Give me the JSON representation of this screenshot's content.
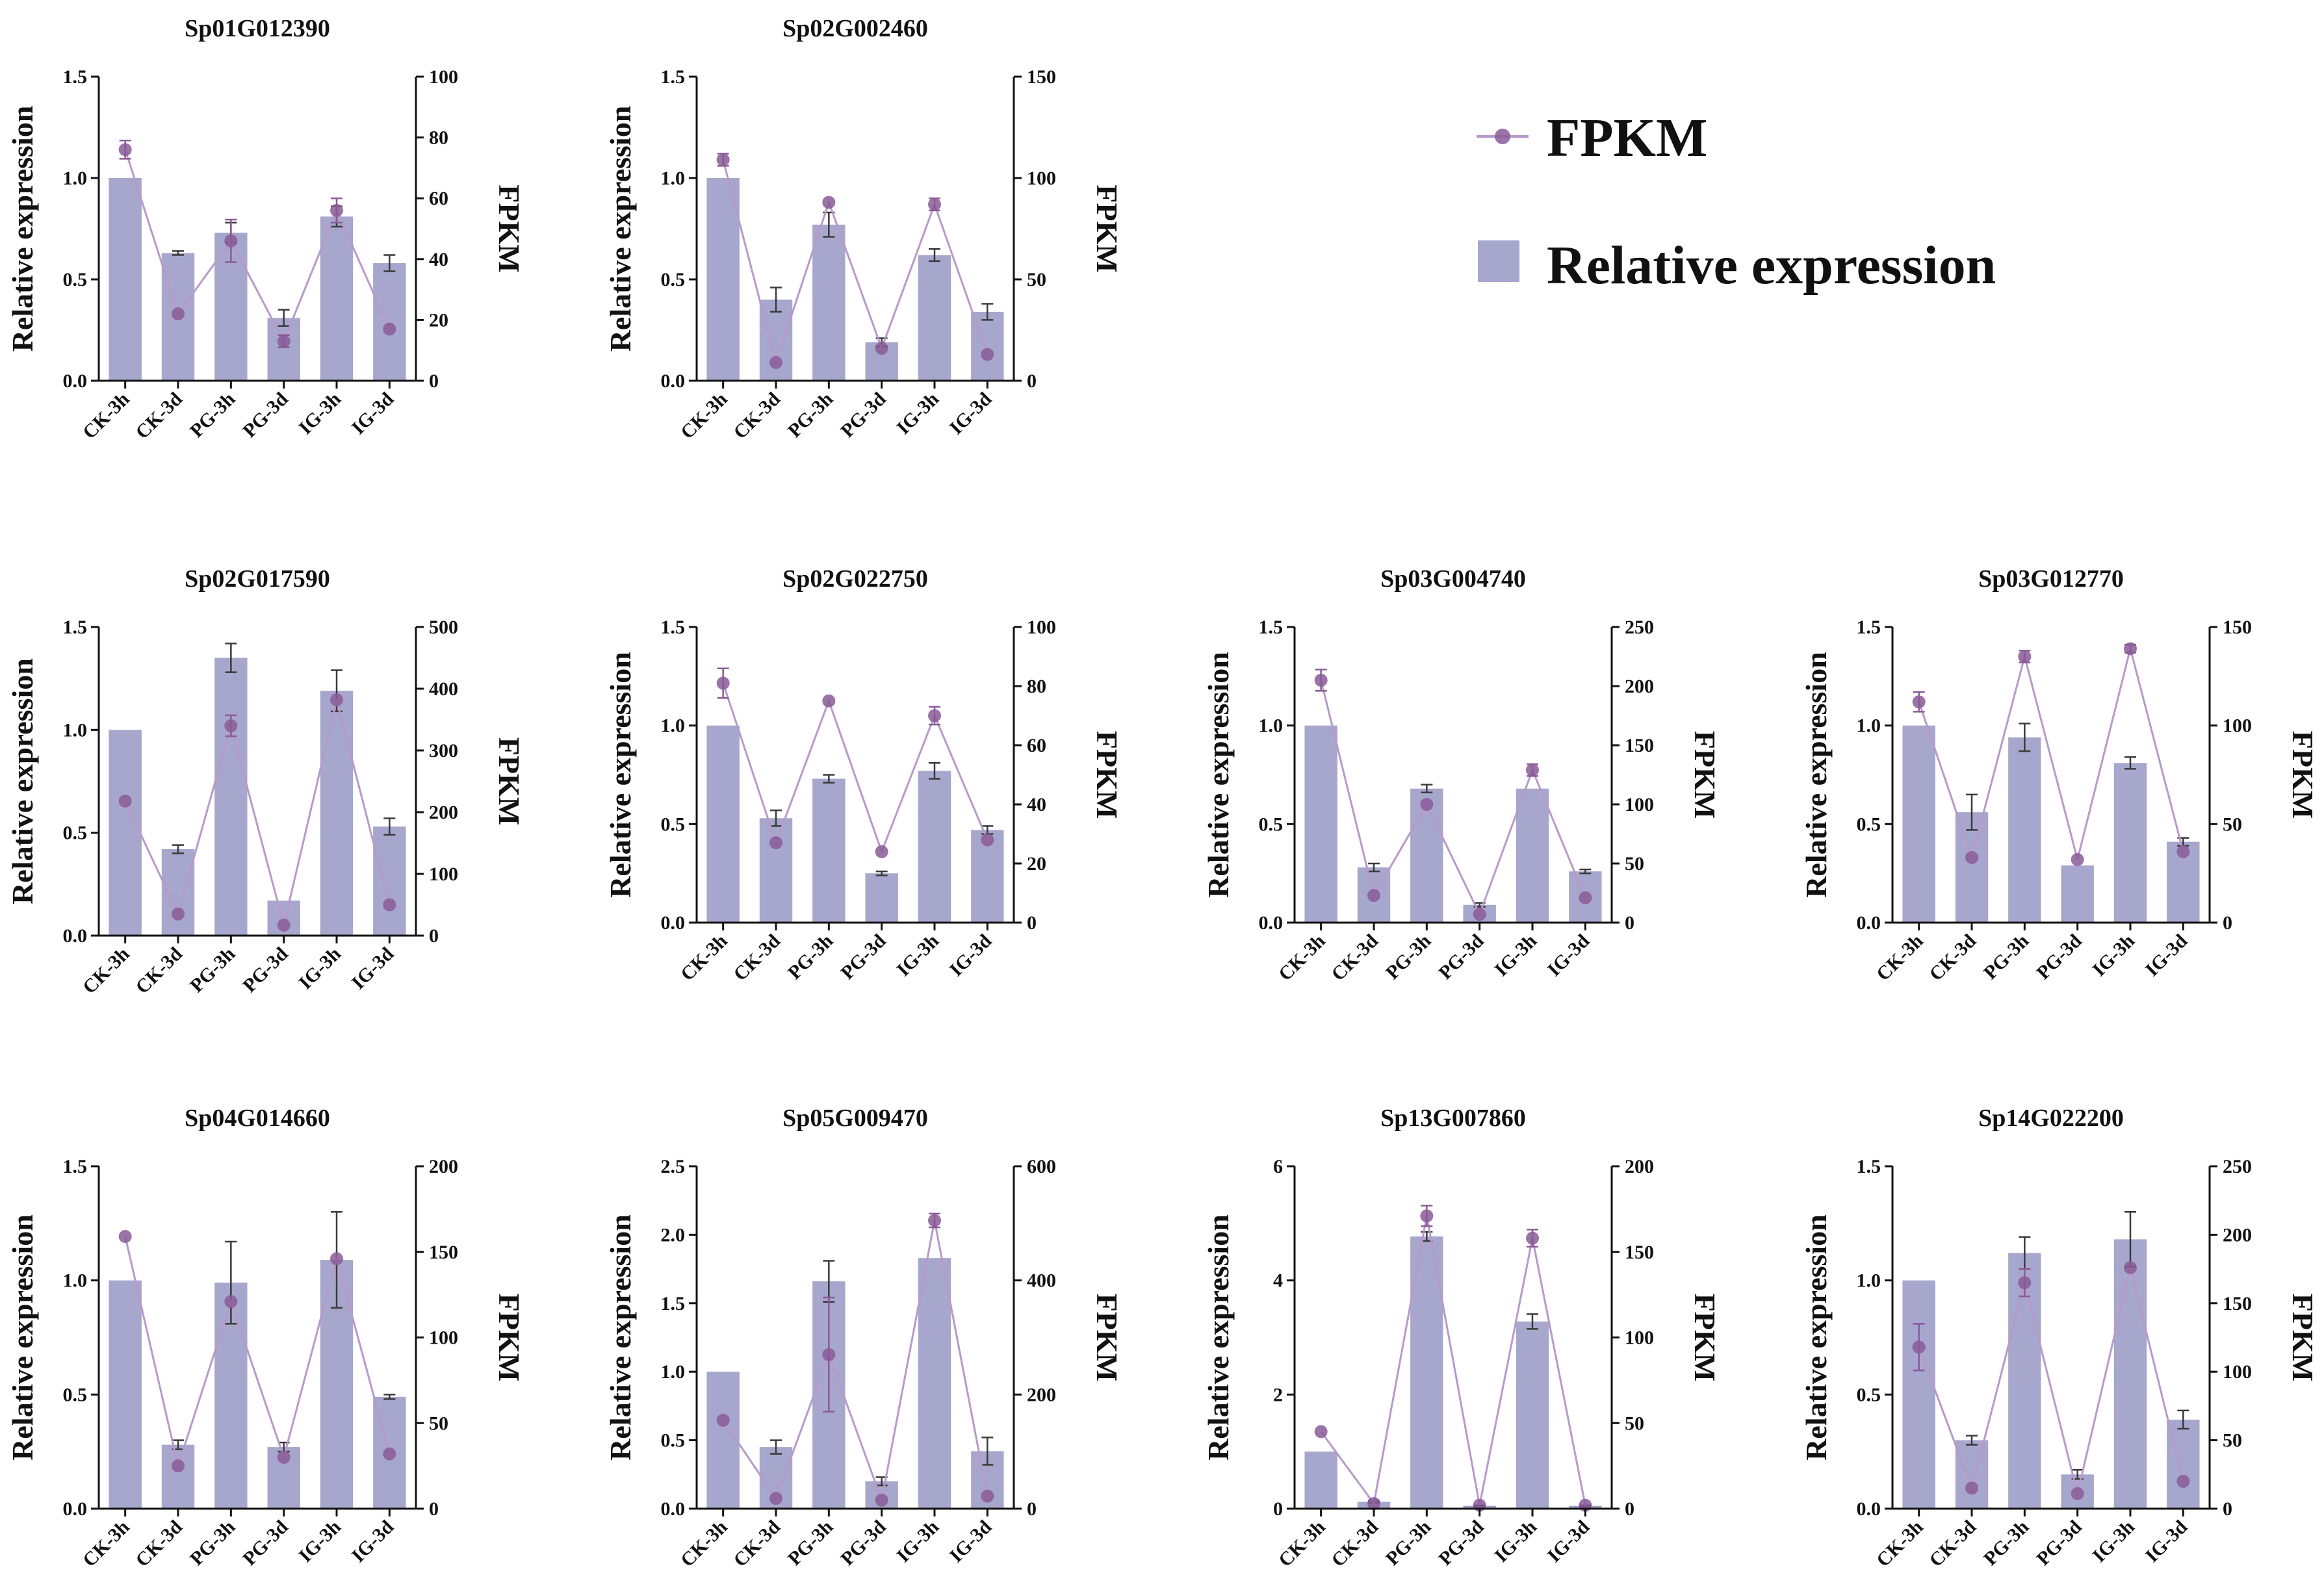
{
  "colors": {
    "bar": "#a7a7cd",
    "line": "#b79ac9",
    "marker": "#8a5a98",
    "error": "#3a3a3a",
    "axis": "#111111"
  },
  "legend": {
    "line_label": "FPKM",
    "bar_label": "Relative expression"
  },
  "chart_data": [
    {
      "type": "bar+line",
      "title": "Sp01G012390",
      "categories": [
        "CK-3h",
        "CK-3d",
        "PG-3h",
        "PG-3d",
        "IG-3h",
        "IG-3d"
      ],
      "ylabel": "Relative expression",
      "y2label": "FPKM",
      "ylim": [
        0,
        1.5
      ],
      "yticks": [
        "0.0",
        "0.5",
        "1.0",
        "1.5"
      ],
      "y2lim": [
        0,
        100
      ],
      "y2ticks": [
        "0",
        "20",
        "40",
        "60",
        "80",
        "100"
      ],
      "bars": [
        1.0,
        0.63,
        0.73,
        0.31,
        0.81,
        0.58
      ],
      "bar_err": [
        0,
        0.01,
        0.05,
        0.04,
        0.05,
        0.04
      ],
      "fpkm": [
        76,
        22,
        46,
        13,
        56,
        17
      ],
      "fpkm_err": [
        3,
        0,
        7,
        2,
        4,
        0
      ]
    },
    {
      "type": "bar+line",
      "title": "Sp02G002460",
      "categories": [
        "CK-3h",
        "CK-3d",
        "PG-3h",
        "PG-3d",
        "IG-3h",
        "IG-3d"
      ],
      "ylabel": "Relative expression",
      "y2label": "FPKM",
      "ylim": [
        0,
        1.5
      ],
      "yticks": [
        "0.0",
        "0.5",
        "1.0",
        "1.5"
      ],
      "y2lim": [
        0,
        150
      ],
      "y2ticks": [
        "0",
        "50",
        "100",
        "150"
      ],
      "bars": [
        1.0,
        0.4,
        0.77,
        0.19,
        0.62,
        0.34
      ],
      "bar_err": [
        0,
        0.06,
        0.06,
        0.02,
        0.03,
        0.04
      ],
      "fpkm": [
        109,
        9,
        88,
        16,
        87,
        13
      ],
      "fpkm_err": [
        3,
        0,
        0,
        0,
        3,
        0
      ]
    },
    {
      "type": "bar+line",
      "title": "Sp02G017590",
      "categories": [
        "CK-3h",
        "CK-3d",
        "PG-3h",
        "PG-3d",
        "IG-3h",
        "IG-3d"
      ],
      "ylabel": "Relative expression",
      "y2label": "FPKM",
      "ylim": [
        0,
        1.5
      ],
      "yticks": [
        "0.0",
        "0.5",
        "1.0",
        "1.5"
      ],
      "y2lim": [
        0,
        500
      ],
      "y2ticks": [
        "0",
        "100",
        "200",
        "300",
        "400",
        "500"
      ],
      "bars": [
        1.0,
        0.42,
        1.35,
        0.17,
        1.19,
        0.53
      ],
      "bar_err": [
        0,
        0.02,
        0.07,
        0,
        0.1,
        0.04
      ],
      "fpkm": [
        218,
        35,
        340,
        17,
        382,
        50
      ],
      "fpkm_err": [
        0,
        0,
        17,
        0,
        0,
        0
      ]
    },
    {
      "type": "bar+line",
      "title": "Sp02G022750",
      "categories": [
        "CK-3h",
        "CK-3d",
        "PG-3h",
        "PG-3d",
        "IG-3h",
        "IG-3d"
      ],
      "ylabel": "Relative expression",
      "y2label": "FPKM",
      "ylim": [
        0,
        1.5
      ],
      "yticks": [
        "0.0",
        "0.5",
        "1.0",
        "1.5"
      ],
      "y2lim": [
        0,
        100
      ],
      "y2ticks": [
        "0",
        "20",
        "40",
        "60",
        "80",
        "100"
      ],
      "bars": [
        1.0,
        0.53,
        0.73,
        0.25,
        0.77,
        0.47
      ],
      "bar_err": [
        0,
        0.04,
        0.02,
        0.01,
        0.04,
        0.02
      ],
      "fpkm": [
        81,
        27,
        75,
        24,
        70,
        28
      ],
      "fpkm_err": [
        5,
        0,
        0,
        0,
        3,
        0
      ]
    },
    {
      "type": "bar+line",
      "title": "Sp03G004740",
      "categories": [
        "CK-3h",
        "CK-3d",
        "PG-3h",
        "PG-3d",
        "IG-3h",
        "IG-3d"
      ],
      "ylabel": "Relative expression",
      "y2label": "FPKM",
      "ylim": [
        0,
        1.5
      ],
      "yticks": [
        "0.0",
        "0.5",
        "1.0",
        "1.5"
      ],
      "y2lim": [
        0,
        250
      ],
      "y2ticks": [
        "0",
        "50",
        "100",
        "150",
        "200",
        "250"
      ],
      "bars": [
        1.0,
        0.28,
        0.68,
        0.09,
        0.68,
        0.26
      ],
      "bar_err": [
        0,
        0.02,
        0.02,
        0.01,
        0,
        0.01
      ],
      "fpkm": [
        205,
        23,
        100,
        7,
        129,
        21
      ],
      "fpkm_err": [
        9,
        0,
        0,
        0,
        5,
        0
      ]
    },
    {
      "type": "bar+line",
      "title": "Sp03G012770",
      "categories": [
        "CK-3h",
        "CK-3d",
        "PG-3h",
        "PG-3d",
        "IG-3h",
        "IG-3d"
      ],
      "ylabel": "Relative expression",
      "y2label": "FPKM",
      "ylim": [
        0,
        1.5
      ],
      "yticks": [
        "0.0",
        "0.5",
        "1.0",
        "1.5"
      ],
      "y2lim": [
        0,
        150
      ],
      "y2ticks": [
        "0",
        "50",
        "100",
        "150"
      ],
      "bars": [
        1.0,
        0.56,
        0.94,
        0.29,
        0.81,
        0.41
      ],
      "bar_err": [
        0,
        0.09,
        0.07,
        0,
        0.03,
        0.02
      ],
      "fpkm": [
        112,
        33,
        135,
        32,
        139,
        36
      ],
      "fpkm_err": [
        5,
        0,
        3,
        0,
        2,
        0
      ]
    },
    {
      "type": "bar+line",
      "title": "Sp04G014660",
      "categories": [
        "CK-3h",
        "CK-3d",
        "PG-3h",
        "PG-3d",
        "IG-3h",
        "IG-3d"
      ],
      "ylabel": "Relative expression",
      "y2label": "FPKM",
      "ylim": [
        0,
        1.5
      ],
      "yticks": [
        "0.0",
        "0.5",
        "1.0",
        "1.5"
      ],
      "y2lim": [
        0,
        200
      ],
      "y2ticks": [
        "0",
        "50",
        "100",
        "150",
        "200"
      ],
      "bars": [
        1.0,
        0.28,
        0.99,
        0.27,
        1.09,
        0.49
      ],
      "bar_err": [
        0,
        0.02,
        0.18,
        0.02,
        0.21,
        0.01
      ],
      "fpkm": [
        159,
        25,
        121,
        30,
        146,
        32
      ],
      "fpkm_err": [
        0,
        0,
        0,
        0,
        0,
        0
      ]
    },
    {
      "type": "bar+line",
      "title": "Sp05G009470",
      "categories": [
        "CK-3h",
        "CK-3d",
        "PG-3h",
        "PG-3d",
        "IG-3h",
        "IG-3d"
      ],
      "ylabel": "Relative expression",
      "y2label": "FPKM",
      "ylim": [
        0,
        2.5
      ],
      "yticks": [
        "0.0",
        "0.5",
        "1.0",
        "1.5",
        "2.0",
        "2.5"
      ],
      "y2lim": [
        0,
        600
      ],
      "y2ticks": [
        "0",
        "200",
        "400",
        "600"
      ],
      "bars": [
        1.0,
        0.45,
        1.66,
        0.2,
        1.83,
        0.42
      ],
      "bar_err": [
        0,
        0.05,
        0.15,
        0.03,
        0,
        0.1
      ],
      "fpkm": [
        155,
        18,
        270,
        15,
        505,
        22
      ],
      "fpkm_err": [
        0,
        0,
        100,
        0,
        12,
        0
      ]
    },
    {
      "type": "bar+line",
      "title": "Sp13G007860",
      "categories": [
        "CK-3h",
        "CK-3d",
        "PG-3h",
        "PG-3d",
        "IG-3h",
        "IG-3d"
      ],
      "ylabel": "Relative expression",
      "y2label": "FPKM",
      "ylim": [
        0,
        6
      ],
      "yticks": [
        "0",
        "2",
        "4",
        "6"
      ],
      "y2lim": [
        0,
        200
      ],
      "y2ticks": [
        "0",
        "50",
        "100",
        "150",
        "200"
      ],
      "bars": [
        1.0,
        0.12,
        4.77,
        0.05,
        3.28,
        0.05
      ],
      "bar_err": [
        0,
        0.02,
        0.08,
        0.01,
        0.13,
        0.01
      ],
      "fpkm": [
        45,
        3,
        171,
        2,
        158,
        2
      ],
      "fpkm_err": [
        0,
        0,
        6,
        0,
        5,
        0
      ]
    },
    {
      "type": "bar+line",
      "title": "Sp14G022200",
      "categories": [
        "CK-3h",
        "CK-3d",
        "PG-3h",
        "PG-3d",
        "IG-3h",
        "IG-3d"
      ],
      "ylabel": "Relative expression",
      "y2label": "FPKM",
      "ylim": [
        0,
        1.5
      ],
      "yticks": [
        "0.0",
        "0.5",
        "1.0",
        "1.5"
      ],
      "y2lim": [
        0,
        250
      ],
      "y2ticks": [
        "0",
        "50",
        "100",
        "150",
        "200",
        "250"
      ],
      "bars": [
        1.0,
        0.3,
        1.12,
        0.15,
        1.18,
        0.39
      ],
      "bar_err": [
        0,
        0.02,
        0.07,
        0.02,
        0.12,
        0.04
      ],
      "fpkm": [
        118,
        15,
        165,
        11,
        176,
        20
      ],
      "fpkm_err": [
        17,
        0,
        10,
        0,
        0,
        0
      ]
    }
  ]
}
